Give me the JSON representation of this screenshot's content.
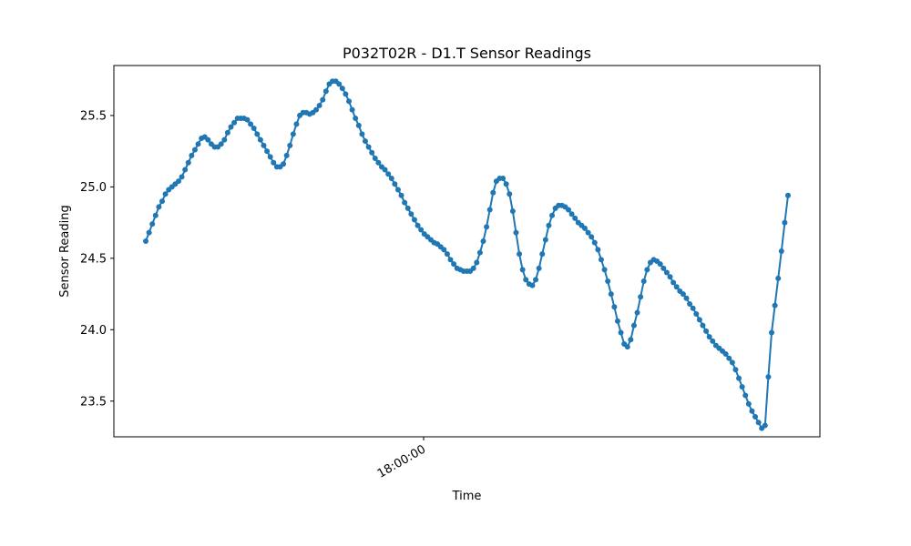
{
  "chart_data": {
    "type": "line",
    "title": "P032T02R - D1.T Sensor Readings",
    "xlabel": "Time",
    "ylabel": "Sensor Reading",
    "ylim": [
      23.25,
      25.85
    ],
    "yticks": [
      23.5,
      24.0,
      24.5,
      25.0,
      25.5
    ],
    "ytick_labels": [
      "23.5",
      "24.0",
      "24.5",
      "25.0",
      "25.5"
    ],
    "xtick_labels": [
      "18:00:00"
    ],
    "grid": false,
    "legend": false,
    "marker": "circle",
    "color": "#1f77b4",
    "series": [
      {
        "values": [
          24.62,
          24.68,
          24.74,
          24.8,
          24.86,
          24.9,
          24.95,
          24.98,
          25.0,
          25.02,
          25.04,
          25.07,
          25.12,
          25.17,
          25.22,
          25.26,
          25.3,
          25.34,
          25.35,
          25.33,
          25.3,
          25.28,
          25.28,
          25.3,
          25.33,
          25.38,
          25.42,
          25.45,
          25.48,
          25.48,
          25.48,
          25.47,
          25.44,
          25.41,
          25.37,
          25.33,
          25.29,
          25.25,
          25.21,
          25.17,
          25.14,
          25.14,
          25.16,
          25.22,
          25.29,
          25.37,
          25.44,
          25.5,
          25.52,
          25.52,
          25.51,
          25.52,
          25.54,
          25.57,
          25.61,
          25.67,
          25.72,
          25.74,
          25.74,
          25.72,
          25.69,
          25.65,
          25.6,
          25.54,
          25.48,
          25.43,
          25.37,
          25.32,
          25.28,
          25.24,
          25.2,
          25.17,
          25.14,
          25.12,
          25.09,
          25.06,
          25.02,
          24.98,
          24.94,
          24.89,
          24.85,
          24.81,
          24.77,
          24.73,
          24.7,
          24.67,
          24.65,
          24.63,
          24.61,
          24.6,
          24.58,
          24.56,
          24.53,
          24.49,
          24.46,
          24.43,
          24.42,
          24.41,
          24.41,
          24.41,
          24.43,
          24.47,
          24.54,
          24.62,
          24.72,
          24.84,
          24.96,
          25.04,
          25.06,
          25.06,
          25.02,
          24.95,
          24.83,
          24.68,
          24.53,
          24.42,
          24.35,
          24.32,
          24.31,
          24.35,
          24.43,
          24.53,
          24.63,
          24.73,
          24.8,
          24.85,
          24.87,
          24.87,
          24.86,
          24.84,
          24.81,
          24.78,
          24.75,
          24.73,
          24.71,
          24.68,
          24.65,
          24.61,
          24.56,
          24.49,
          24.42,
          24.34,
          24.25,
          24.16,
          24.06,
          23.98,
          23.9,
          23.88,
          23.93,
          24.03,
          24.12,
          24.23,
          24.34,
          24.42,
          24.47,
          24.49,
          24.48,
          24.46,
          24.43,
          24.4,
          24.37,
          24.33,
          24.3,
          24.27,
          24.25,
          24.22,
          24.18,
          24.15,
          24.11,
          24.07,
          24.03,
          23.99,
          23.95,
          23.92,
          23.89,
          23.87,
          23.85,
          23.83,
          23.8,
          23.77,
          23.72,
          23.66,
          23.6,
          23.54,
          23.48,
          23.43,
          23.39,
          23.35,
          23.31,
          23.33,
          23.67,
          23.98,
          24.17,
          24.36,
          24.55,
          24.75,
          24.94
        ]
      }
    ]
  }
}
